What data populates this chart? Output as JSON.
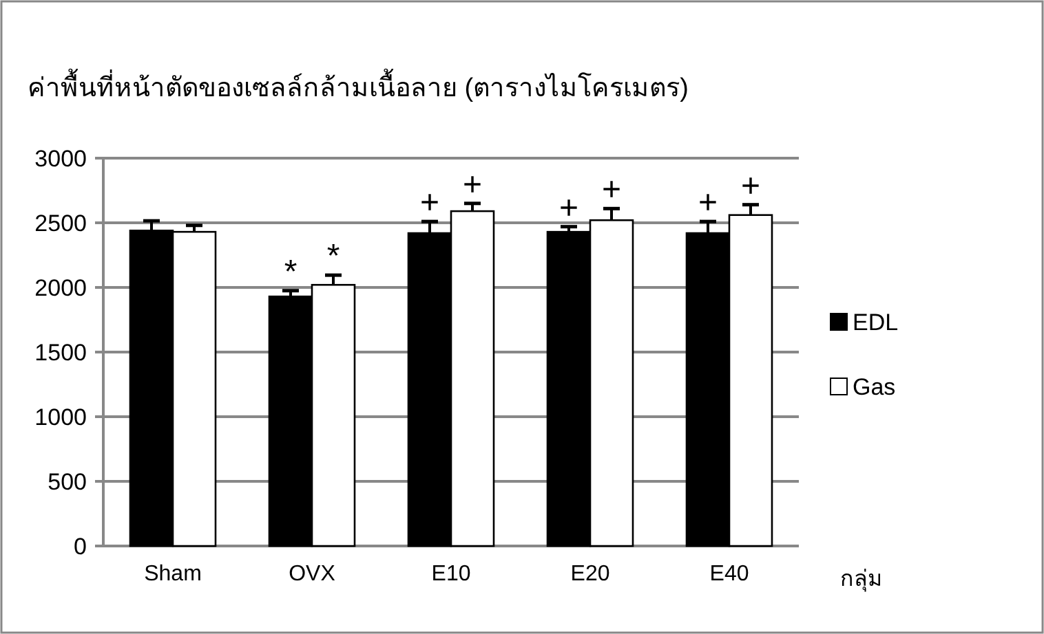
{
  "chart_data": {
    "type": "bar",
    "title": "ค่าพื้นที่หน้าตัดของเซลล์กล้ามเนื้อลาย (ตารางไมโครเมตร)",
    "xlabel": "กลุ่ม",
    "categories": [
      "Sham",
      "OVX",
      "E10",
      "E20",
      "E40"
    ],
    "series": [
      {
        "name": "EDL",
        "color": "#000000",
        "values": [
          2440,
          1930,
          2420,
          2430,
          2420
        ],
        "errors": [
          75,
          45,
          90,
          40,
          90
        ]
      },
      {
        "name": "Gas",
        "color": "#ffffff",
        "values": [
          2430,
          2020,
          2590,
          2520,
          2560
        ],
        "errors": [
          50,
          75,
          60,
          90,
          80
        ]
      }
    ],
    "ylim": [
      0,
      3000
    ],
    "yticks": [
      0,
      500,
      1000,
      1500,
      2000,
      2500,
      3000
    ],
    "grid": "y",
    "legend": "right",
    "annotations": [
      {
        "text": "*",
        "x": "OVX",
        "y": 1930
      },
      {
        "text": "*",
        "x": "OVX",
        "y": 2020
      },
      {
        "text": "+",
        "x": "E10",
        "y": 2420
      },
      {
        "text": "+",
        "x": "E10",
        "y": 2590
      },
      {
        "text": "+",
        "x": "E20",
        "y": 2430
      },
      {
        "text": "+",
        "x": "E20",
        "y": 2520
      },
      {
        "text": "+",
        "x": "E40",
        "y": 2420
      },
      {
        "text": "+",
        "x": "E40",
        "y": 2560
      }
    ]
  }
}
